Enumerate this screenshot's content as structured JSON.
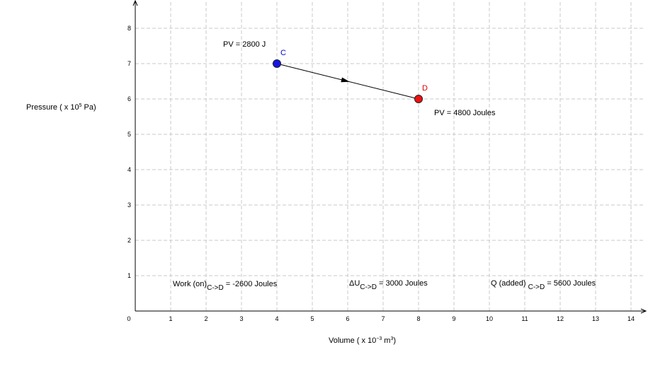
{
  "chart_data": {
    "type": "line",
    "xlabel": {
      "text": "Volume ( x 10",
      "exp": "−3",
      "unit": " m",
      "unit_exp": "3",
      "close": ")"
    },
    "ylabel": {
      "text": "Pressure ( x 10",
      "exp": "5",
      "unit": " Pa)"
    },
    "xlim": [
      0,
      14.4
    ],
    "ylim": [
      0,
      8.7
    ],
    "x_ticks": [
      "0",
      "1",
      "2",
      "3",
      "4",
      "5",
      "6",
      "7",
      "8",
      "9",
      "10",
      "11",
      "12",
      "13",
      "14"
    ],
    "y_ticks": [
      "1",
      "2",
      "3",
      "4",
      "5",
      "6",
      "7",
      "8"
    ],
    "grid": true,
    "points": [
      {
        "name": "C",
        "x": 4,
        "y": 7,
        "color": "#1515e6",
        "label_color": "#0000cc"
      },
      {
        "name": "D",
        "x": 8,
        "y": 6,
        "color": "#ee1111",
        "label_color": "#dd0000"
      }
    ],
    "path_direction": "C->D"
  },
  "annotations": {
    "pv_c": "PV = 2800 J",
    "pv_d": "PV = 4800 Joules",
    "work": {
      "prefix": "Work (on)",
      "sub": "C->D",
      "value": " = -2600  Joules"
    },
    "du": {
      "prefix": "ΔU",
      "sub": "C->D",
      "value": " = 3000 Joules"
    },
    "q": {
      "prefix": "Q (added) ",
      "sub": "C->D",
      "value": " = 5600 Joules"
    }
  }
}
